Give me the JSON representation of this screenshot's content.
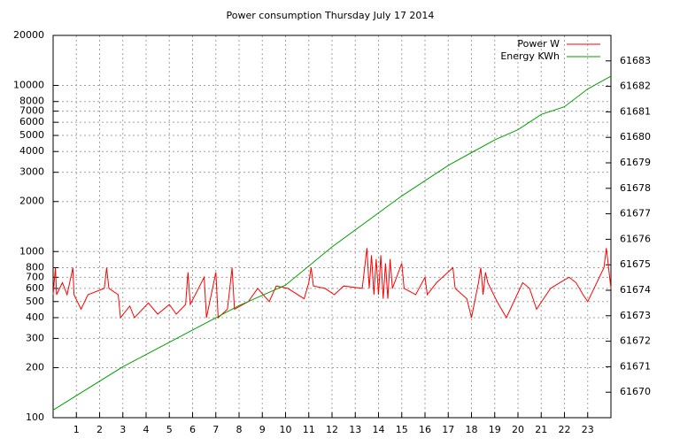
{
  "chart_data": {
    "type": "line",
    "title": "Power consumption Thursday July 17 2014",
    "xlim": [
      0,
      24
    ],
    "xticks": [
      1,
      2,
      3,
      4,
      5,
      6,
      7,
      8,
      9,
      10,
      11,
      12,
      13,
      14,
      15,
      16,
      17,
      18,
      19,
      20,
      21,
      22,
      23
    ],
    "ylim": [
      100,
      20000
    ],
    "log_y": true,
    "yticks": [
      100,
      200,
      300,
      400,
      500,
      600,
      700,
      800,
      1000,
      2000,
      3000,
      4000,
      5000,
      6000,
      7000,
      8000,
      10000,
      20000
    ],
    "y2lim": [
      61669,
      61684
    ],
    "y2ticks": [
      61670,
      61671,
      61672,
      61673,
      61674,
      61675,
      61676,
      61677,
      61678,
      61679,
      61680,
      61681,
      61682,
      61683
    ],
    "grid": true,
    "legend": "top-right",
    "series": [
      {
        "name": "Power W",
        "color": "#ff0000",
        "x": [
          0,
          0.1,
          0.15,
          0.4,
          0.6,
          0.85,
          0.9,
          1.2,
          1.5,
          2.2,
          2.3,
          2.4,
          2.8,
          2.9,
          3.3,
          3.5,
          4.1,
          4.5,
          5.0,
          5.3,
          5.7,
          5.8,
          5.9,
          6.5,
          6.6,
          7.0,
          7.1,
          7.5,
          7.7,
          7.8,
          8.4,
          8.8,
          9.3,
          9.6,
          10.1,
          10.8,
          11.0,
          11.1,
          11.2,
          11.7,
          12.1,
          12.5,
          13.3,
          13.5,
          13.6,
          13.7,
          13.8,
          13.9,
          14.0,
          14.1,
          14.2,
          14.3,
          14.4,
          14.5,
          14.6,
          15.0,
          15.1,
          15.6,
          16.0,
          16.1,
          16.5,
          17.2,
          17.3,
          17.8,
          18.0,
          18.3,
          18.4,
          18.5,
          18.6,
          18.7,
          19.1,
          19.5,
          20.2,
          20.5,
          20.8,
          21.4,
          21.8,
          22.2,
          22.5,
          22.8,
          23.0,
          23.7,
          23.8,
          24
        ],
        "values": [
          550,
          800,
          550,
          650,
          550,
          800,
          550,
          450,
          550,
          600,
          800,
          600,
          550,
          400,
          470,
          400,
          490,
          420,
          480,
          420,
          480,
          750,
          480,
          700,
          400,
          750,
          400,
          450,
          800,
          450,
          500,
          600,
          500,
          620,
          600,
          520,
          650,
          800,
          620,
          600,
          550,
          620,
          600,
          1050,
          600,
          950,
          550,
          900,
          550,
          950,
          520,
          850,
          520,
          900,
          600,
          850,
          600,
          550,
          700,
          550,
          650,
          800,
          600,
          520,
          400,
          650,
          800,
          550,
          750,
          650,
          500,
          400,
          650,
          600,
          450,
          600,
          650,
          700,
          650,
          550,
          500,
          800,
          1050,
          600
        ]
      },
      {
        "name": "Energy KWh",
        "color": "#00a000",
        "axis": "y2",
        "x": [
          0,
          3,
          8,
          10,
          12,
          15,
          17,
          18,
          19,
          20,
          21,
          22,
          23,
          24
        ],
        "values": [
          61669.3,
          61671.0,
          61673.4,
          61674.2,
          61675.7,
          61677.7,
          61678.9,
          61679.4,
          61679.9,
          61680.3,
          61680.9,
          61681.2,
          61681.9,
          61682.4
        ]
      }
    ]
  }
}
